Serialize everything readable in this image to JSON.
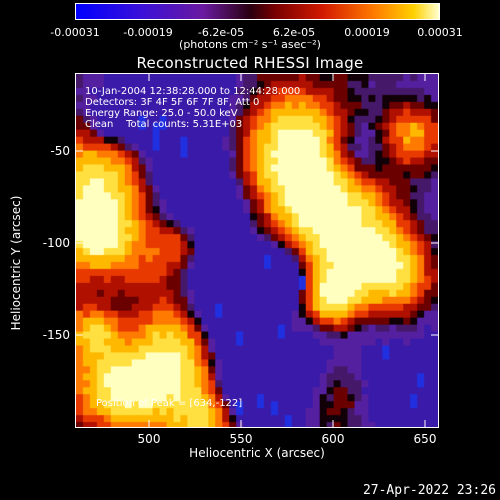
{
  "colorbar": {
    "ticks": [
      "-0.00031",
      "-0.00019",
      "-6.2e-05",
      "6.2e-05",
      "0.00019",
      "0.00031"
    ],
    "units": "(photons cm⁻² s⁻¹ asec⁻²)"
  },
  "title": "Reconstructed RHESSI Image",
  "info": {
    "time_range": "10-Jan-2004 12:38:28.000 to 12:44:28.000",
    "detectors": "Detectors: 3F 4F 5F 6F 7F 8F, Att 0",
    "energy": "Energy Range: 25.0 - 50.0 keV",
    "clean": "Clean    Total counts: 5.31E+03",
    "peak": "Position of Peak = [634,-122]"
  },
  "axes": {
    "xlabel": "Heliocentric X (arcsec)",
    "ylabel": "Heliocentric Y (arcsec)",
    "xticks": [
      "500",
      "550",
      "600",
      "650"
    ],
    "yticks": [
      "-50",
      "-100",
      "-150"
    ]
  },
  "timestamp": "27-Apr-2022 23:26",
  "colors": {
    "background": "#000000",
    "text": "#ffffff"
  }
}
